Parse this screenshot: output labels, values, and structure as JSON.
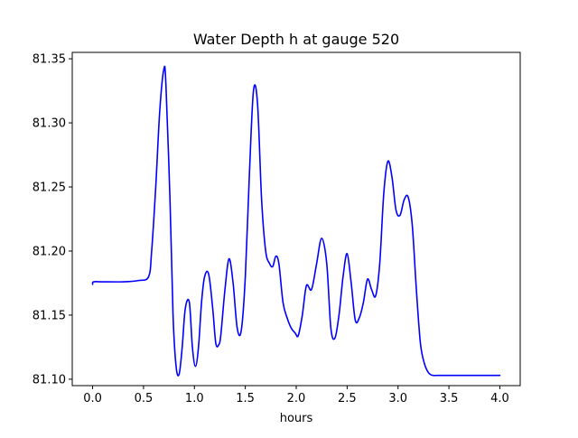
{
  "chart_data": {
    "type": "line",
    "title": "Water Depth h at gauge 520",
    "xlabel": "hours",
    "ylabel": "",
    "xlim": [
      -0.2,
      4.2
    ],
    "ylim": [
      81.095,
      81.355
    ],
    "xticks": [
      0.0,
      0.5,
      1.0,
      1.5,
      2.0,
      2.5,
      3.0,
      3.5,
      4.0
    ],
    "xtick_labels": [
      "0.0",
      "0.5",
      "1.0",
      "1.5",
      "2.0",
      "2.5",
      "3.0",
      "3.5",
      "4.0"
    ],
    "yticks": [
      81.1,
      81.15,
      81.2,
      81.25,
      81.3,
      81.35
    ],
    "ytick_labels": [
      "81.10",
      "81.15",
      "81.20",
      "81.25",
      "81.30",
      "81.35"
    ],
    "grid": false,
    "legend": "none",
    "series": [
      {
        "color": "#0000ff",
        "x": [
          0.0,
          0.01,
          0.1,
          0.3,
          0.45,
          0.55,
          0.58,
          0.62,
          0.66,
          0.7,
          0.72,
          0.76,
          0.79,
          0.82,
          0.85,
          0.88,
          0.91,
          0.95,
          0.98,
          1.01,
          1.04,
          1.07,
          1.1,
          1.14,
          1.18,
          1.21,
          1.24,
          1.26,
          1.3,
          1.34,
          1.38,
          1.42,
          1.46,
          1.5,
          1.54,
          1.58,
          1.62,
          1.66,
          1.7,
          1.74,
          1.77,
          1.8,
          1.83,
          1.87,
          1.91,
          1.95,
          1.99,
          2.02,
          2.06,
          2.1,
          2.15,
          2.2,
          2.25,
          2.3,
          2.34,
          2.38,
          2.42,
          2.46,
          2.5,
          2.54,
          2.58,
          2.62,
          2.66,
          2.7,
          2.74,
          2.78,
          2.82,
          2.86,
          2.9,
          2.94,
          2.98,
          3.02,
          3.06,
          3.1,
          3.14,
          3.18,
          3.22,
          3.26,
          3.3,
          3.34,
          3.38,
          3.42,
          3.46,
          3.5,
          3.54,
          3.58,
          3.62,
          3.66,
          3.7,
          3.74,
          3.78,
          3.82,
          3.86,
          3.9,
          3.94,
          3.97,
          4.0
        ],
        "y": [
          81.174,
          81.176,
          81.176,
          81.176,
          81.177,
          81.18,
          81.2,
          81.25,
          81.31,
          81.342,
          81.33,
          81.24,
          81.15,
          81.11,
          81.104,
          81.125,
          81.155,
          81.16,
          81.125,
          81.11,
          81.125,
          81.16,
          81.18,
          81.182,
          81.155,
          81.128,
          81.127,
          81.135,
          81.17,
          81.194,
          81.175,
          81.14,
          81.138,
          81.18,
          81.26,
          81.325,
          81.315,
          81.24,
          81.2,
          81.19,
          81.188,
          81.196,
          81.19,
          81.16,
          81.148,
          81.14,
          81.136,
          81.134,
          81.15,
          81.173,
          81.17,
          81.19,
          81.21,
          81.19,
          81.14,
          81.132,
          81.15,
          81.18,
          81.198,
          81.175,
          81.146,
          81.148,
          81.16,
          81.178,
          81.17,
          81.165,
          81.19,
          81.245,
          81.27,
          81.258,
          81.232,
          81.228,
          81.24,
          81.242,
          81.22,
          81.17,
          81.128,
          81.112,
          81.105,
          81.103,
          81.103,
          81.103,
          81.103,
          81.103,
          81.103,
          81.103,
          81.103,
          81.103,
          81.103,
          81.103,
          81.103,
          81.103,
          81.103,
          81.103,
          81.103,
          81.103,
          81.103
        ]
      }
    ]
  }
}
